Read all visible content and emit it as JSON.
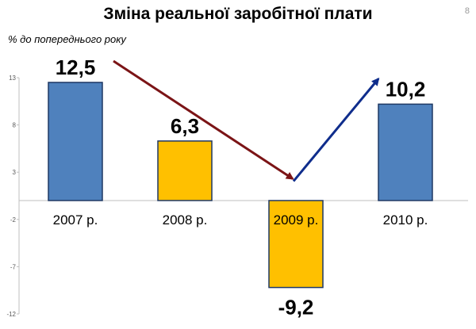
{
  "slide": {
    "title": "Зміна реальної заробітної плати",
    "page_number": "8",
    "unit_label": "% до  попереднього року"
  },
  "colors": {
    "increase_bar": "#4F81BD",
    "decrease_bar": "#FFC000",
    "bar_stroke": "#1F3864",
    "down_arrow": "#7B1416",
    "up_arrow": "#0F2D8C",
    "axis": "#BFBFBF"
  },
  "chart_data": {
    "type": "bar",
    "categories": [
      "2007 р.",
      "2008 р.",
      "2009 р.",
      "2010 р."
    ],
    "values": [
      12.5,
      6.3,
      -9.2,
      10.2
    ],
    "data_labels": [
      "12,5",
      "6,3",
      "-9,2",
      "10,2"
    ],
    "bar_colors": [
      "#4F81BD",
      "#FFC000",
      "#FFC000",
      "#4F81BD"
    ],
    "ylabel": "% до  попереднього року",
    "ylim": [
      -12,
      13
    ],
    "yticks": [
      13,
      8,
      3,
      -2,
      -7,
      -12
    ],
    "grid": false,
    "legend": "none"
  }
}
